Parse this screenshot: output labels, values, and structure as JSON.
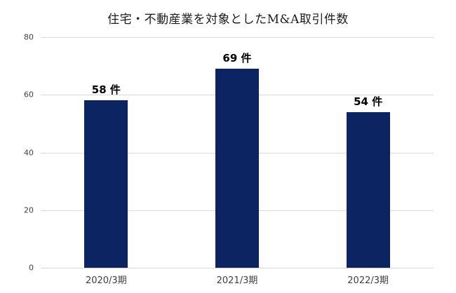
{
  "chart_data": {
    "type": "bar",
    "title": "住宅・不動産業を対象としたM&A取引件数",
    "categories": [
      "2020/3期",
      "2021/3期",
      "2022/3期"
    ],
    "values": [
      58,
      69,
      54
    ],
    "value_labels": [
      "58 件",
      "69 件",
      "54 件"
    ],
    "unit_suffix": "件",
    "xlabel": "",
    "ylabel": "",
    "ylim": [
      0,
      80
    ],
    "yticks": [
      0,
      20,
      40,
      60,
      80
    ],
    "grid": true,
    "legend": "none",
    "colors": {
      "bar": "#0d2463",
      "gridline": "#d9d9d9",
      "tick_text": "#404040",
      "value_text": "#000000",
      "background": "#ffffff"
    }
  }
}
